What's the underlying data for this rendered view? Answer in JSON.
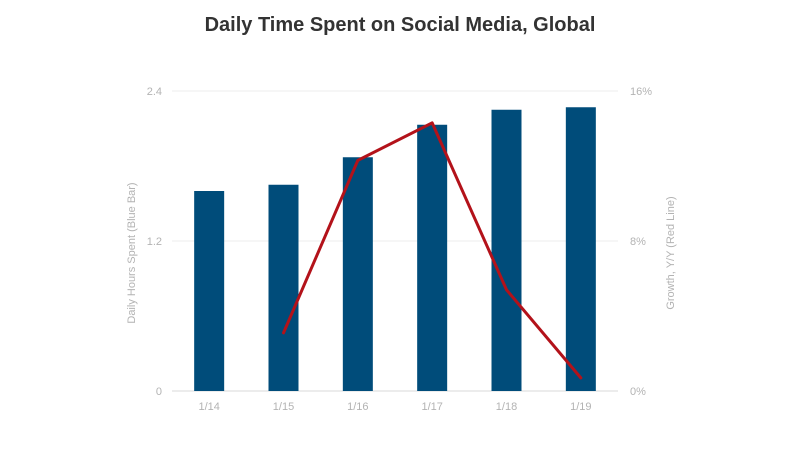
{
  "chart_data": {
    "type": "bar+line",
    "title": "Daily Time Spent on Social Media, Global",
    "categories": [
      "1/14",
      "1/15",
      "1/16",
      "1/17",
      "1/18",
      "1/19"
    ],
    "bars": {
      "name": "Daily Hours Spent (Blue Bar)",
      "values": [
        1.6,
        1.65,
        1.87,
        2.13,
        2.25,
        2.27
      ],
      "color": "#004c7a"
    },
    "line": {
      "name": "Growth, Y/Y (Red Line)",
      "values": [
        null,
        3.1,
        12.3,
        14.3,
        5.4,
        0.7
      ],
      "color": "#b3121a"
    },
    "y_left": {
      "label": "Daily Hours Spent (Blue Bar)",
      "min": 0,
      "max": 2.4,
      "ticks": [
        "0",
        "1.2",
        "2.4"
      ],
      "tick_values": [
        0,
        1.2,
        2.4
      ]
    },
    "y_right": {
      "label": "Growth, Y/Y (Red Line)",
      "min": 0,
      "max": 16,
      "ticks": [
        "0%",
        "8%",
        "16%"
      ],
      "tick_values": [
        0,
        8,
        16
      ]
    },
    "grid": true
  }
}
